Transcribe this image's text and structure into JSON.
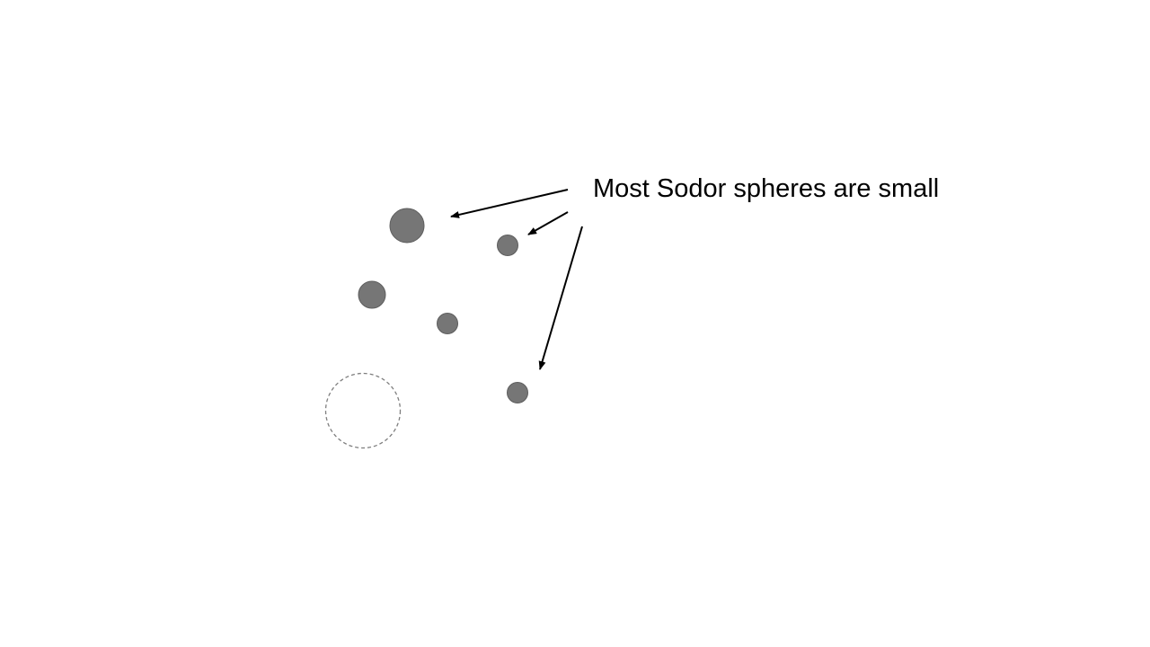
{
  "caption": "Most Sodor spheres are small",
  "colors": {
    "sphere_fill": "#767676",
    "sphere_stroke": "#5e5e5e",
    "dashed_outline": "#7f7f7f",
    "arrow": "#000000",
    "text": "#000000",
    "background": "#ffffff"
  },
  "diagram": {
    "spheres": [
      {
        "name": "sphere-large-top",
        "kind": "filled"
      },
      {
        "name": "sphere-small-upper-right",
        "kind": "filled"
      },
      {
        "name": "sphere-medium-left",
        "kind": "filled"
      },
      {
        "name": "sphere-small-center",
        "kind": "filled"
      },
      {
        "name": "sphere-small-lower-right",
        "kind": "filled"
      },
      {
        "name": "sphere-empty-outline",
        "kind": "dashed-outline"
      }
    ],
    "arrows": [
      {
        "name": "arrow-to-large-top-sphere",
        "target": "sphere-large-top"
      },
      {
        "name": "arrow-to-upper-right-sphere",
        "target": "sphere-small-upper-right"
      },
      {
        "name": "arrow-to-lower-right-sphere",
        "target": "sphere-small-lower-right"
      }
    ]
  }
}
